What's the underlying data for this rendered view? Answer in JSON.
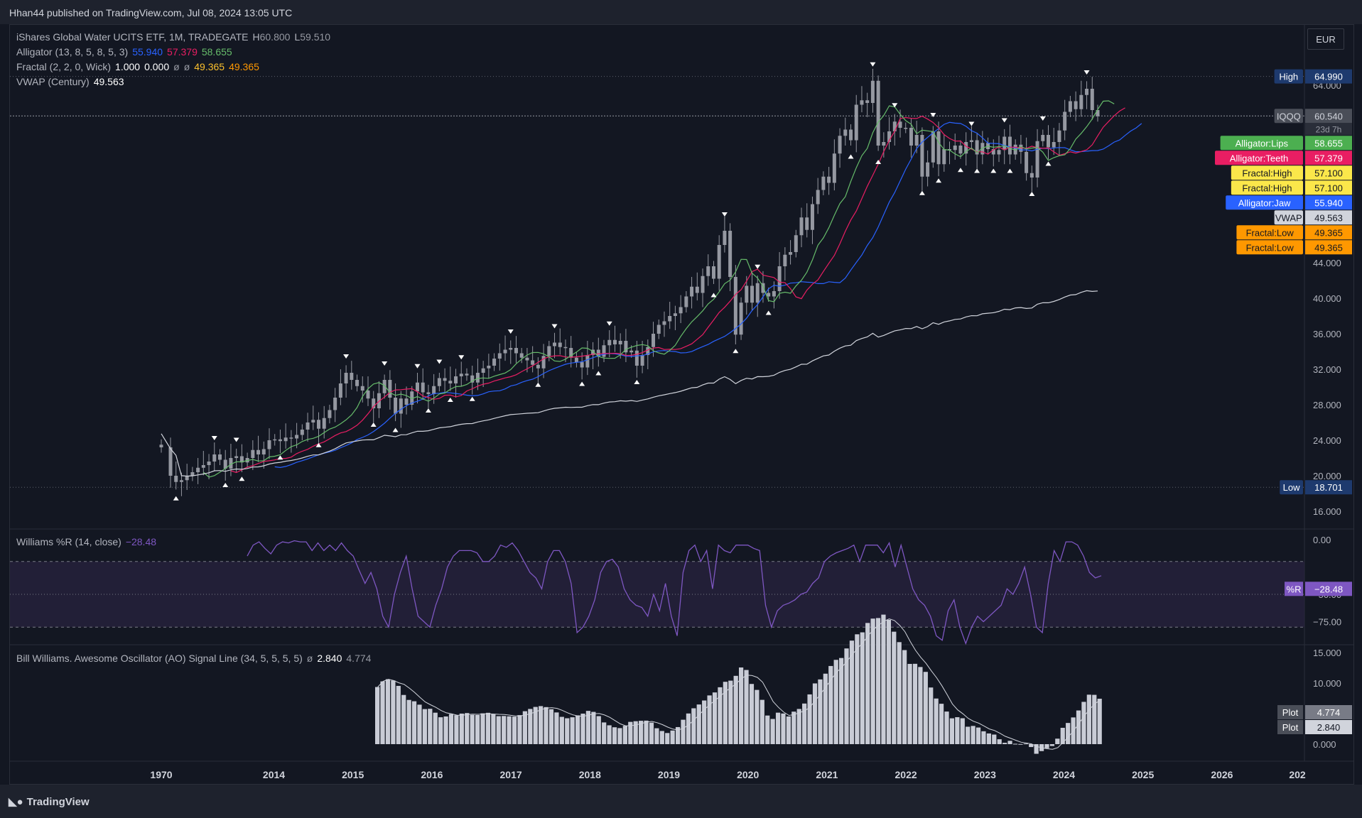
{
  "header": {
    "published": "Hhan44 published on TradingView.com, Jul 08, 2024 13:05 UTC"
  },
  "footer": {
    "brand": "TradingView"
  },
  "currency": "EUR",
  "legend": {
    "symbol": "iShares Global Water UCITS ETF, 1M, TRADEGATE",
    "h_label": "H",
    "h_value": "60.800",
    "l_label": "L",
    "l_value": "59.510",
    "alligator_label": "Alligator (13, 8, 5, 8, 5, 3)",
    "alligator_jaw": "55.940",
    "alligator_teeth": "57.379",
    "alligator_lips": "58.655",
    "fractal_label": "Fractal (2, 2, 0, Wick)",
    "fractal_v1": "1.000",
    "fractal_v2": "0.000",
    "fractal_v3": "ø",
    "fractal_v4": "ø",
    "fractal_v5": "49.365",
    "fractal_v6": "49.365",
    "vwap_label": "VWAP (Century)",
    "vwap_value": "49.563",
    "wr_label": "Williams %R (14, close)",
    "wr_value": "−28.48",
    "ao_label": "Bill Williams. Awesome Oscillator (AO) Signal Line (34, 5, 5, 5, 5)",
    "ao_v1": "ø",
    "ao_v2": "2.840",
    "ao_v3": "4.774"
  },
  "colors": {
    "background": "#131722",
    "candle": "#9598a1",
    "jaw": "#2962ff",
    "teeth": "#e91e63",
    "lips": "#66bb6a",
    "vwap": "#d1d4dc",
    "fractal_high": "#fbc02d",
    "fractal_low": "#ff9800",
    "williams": "#7e57c2",
    "ao_bar": "#c9ccd6",
    "ao_signal": "#d1d4dc"
  },
  "price_labels": [
    {
      "tag": "High",
      "value": "64.990",
      "tag_bg": "#1e3a6e",
      "val_bg": "#1e3a6e",
      "fg": "#ffffff",
      "price": 64.99
    },
    {
      "tag": "IQQQ",
      "value": "60.540",
      "extra": "23d 7h",
      "tag_bg": "#4a4e58",
      "val_bg": "#4a4e58",
      "fg": "#d1d4dc",
      "price": 60.54
    },
    {
      "tag": "Alligator:Lips",
      "value": "58.655",
      "tag_bg": "#4caf50",
      "val_bg": "#4caf50",
      "fg": "#ffffff",
      "price": 58.655
    },
    {
      "tag": "Alligator:Teeth",
      "value": "57.379",
      "tag_bg": "#e91e63",
      "val_bg": "#e91e63",
      "fg": "#ffffff",
      "price": 57.379
    },
    {
      "tag": "Fractal:High",
      "value": "57.100",
      "tag_bg": "#fbe74a",
      "val_bg": "#fbe74a",
      "fg": "#131722",
      "price": 57.1
    },
    {
      "tag": "Fractal:High",
      "value": "57.100",
      "tag_bg": "#fbe74a",
      "val_bg": "#fbe74a",
      "fg": "#131722",
      "price": 57.1
    },
    {
      "tag": "Alligator:Jaw",
      "value": "55.940",
      "tag_bg": "#2962ff",
      "val_bg": "#2962ff",
      "fg": "#ffffff",
      "price": 55.94
    },
    {
      "tag": "VWAP",
      "value": "49.563",
      "tag_bg": "#d1d4dc",
      "val_bg": "#d1d4dc",
      "fg": "#131722",
      "price": 49.563
    },
    {
      "tag": "Fractal:Low",
      "value": "49.365",
      "tag_bg": "#ff9800",
      "val_bg": "#ff9800",
      "fg": "#131722",
      "price": 49.365
    },
    {
      "tag": "Fractal:Low",
      "value": "49.365",
      "tag_bg": "#ff9800",
      "val_bg": "#ff9800",
      "fg": "#131722",
      "price": 49.365
    },
    {
      "tag": "Low",
      "value": "18.701",
      "tag_bg": "#1e3a6e",
      "val_bg": "#1e3a6e",
      "fg": "#ffffff",
      "price": 18.701
    }
  ],
  "wr_label_tag": {
    "tag": "%R",
    "value": "−28.48"
  },
  "ao_labels": [
    {
      "tag": "Plot",
      "value": "4.774"
    },
    {
      "tag": "Plot",
      "value": "2.840"
    }
  ],
  "chart_data": {
    "type": "bar",
    "title": "iShares Global Water UCITS ETF, 1M, TRADEGATE",
    "price_axis_ticks": [
      "16.000",
      "20.000",
      "24.000",
      "28.000",
      "32.000",
      "36.000",
      "40.000",
      "44.000",
      "64.000"
    ],
    "x_ticks": [
      "1970",
      "2014",
      "2015",
      "2016",
      "2017",
      "2018",
      "2019",
      "2020",
      "2021",
      "2022",
      "2023",
      "2024",
      "2025",
      "2026",
      "202"
    ],
    "wr_axis_ticks": [
      "0.00",
      "−50.00",
      "−75.00"
    ],
    "ao_axis_ticks": [
      "15.000",
      "10.000",
      "0.000"
    ],
    "price_ylim": [
      14.6,
      66.5
    ],
    "wr_ylim": [
      -100,
      0
    ],
    "ao_ylim": [
      -2.5,
      15.5
    ],
    "close": [
      23.2,
      20.0,
      19.3,
      19.5,
      20.0,
      20.4,
      20.9,
      21.2,
      21.6,
      22.4,
      21.8,
      20.8,
      22.0,
      22.2,
      21.5,
      22.0,
      22.9,
      22.4,
      23.0,
      24.0,
      24.1,
      23.9,
      24.3,
      24.2,
      24.6,
      25.2,
      26.0,
      26.3,
      25.3,
      26.5,
      27.4,
      28.8,
      30.4,
      31.6,
      30.8,
      30.1,
      29.6,
      28.7,
      27.6,
      29.3,
      30.8,
      28.8,
      27.0,
      28.7,
      28.0,
      29.5,
      30.5,
      29.4,
      29.2,
      30.1,
      31.0,
      30.7,
      30.4,
      31.2,
      31.5,
      31.3,
      30.5,
      31.6,
      32.1,
      32.4,
      33.2,
      33.8,
      34.2,
      34.4,
      33.8,
      33.3,
      33.0,
      32.5,
      32.1,
      33.5,
      34.6,
      35.0,
      34.5,
      34.4,
      33.3,
      32.8,
      32.2,
      33.6,
      34.2,
      33.4,
      34.7,
      35.3,
      34.8,
      35.2,
      33.9,
      34.1,
      32.4,
      33.6,
      34.5,
      36.0,
      37.0,
      37.4,
      38.0,
      38.3,
      39.0,
      40.2,
      41.3,
      40.6,
      42.5,
      43.6,
      42.2,
      46.0,
      47.6,
      42.4,
      35.9,
      39.5,
      41.4,
      39.5,
      41.7,
      40.6,
      40.2,
      40.8,
      43.6,
      44.9,
      45.2,
      47.1,
      49.1,
      47.7,
      50.6,
      52.2,
      53.7,
      53.0,
      56.3,
      58.3,
      59.0,
      57.8,
      61.8,
      62.3,
      62.0,
      64.5,
      57.2,
      57.6,
      58.8,
      59.9,
      59.2,
      59.2,
      57.2,
      58.4,
      53.7,
      55.3,
      58.8,
      55.1,
      56.8,
      56.7,
      57.2,
      56.3,
      57.6,
      57.8,
      56.2,
      57.5,
      56.8,
      56.2,
      56.7,
      58.2,
      56.2,
      57.3,
      56.5,
      54.1,
      53.6,
      57.7,
      58.4,
      57.0,
      57.6,
      58.9,
      61.0,
      62.2,
      61.3,
      62.9,
      63.6,
      61.2,
      60.5
    ],
    "williams_r": [
      -15,
      -5,
      -2,
      -8,
      -13,
      -5,
      -2,
      -3,
      -1,
      -2,
      -2,
      -10,
      -3,
      -10,
      -5,
      -10,
      -3,
      -10,
      -15,
      -28,
      -40,
      -30,
      -45,
      -70,
      -80,
      -50,
      -30,
      -15,
      -45,
      -70,
      -75,
      -80,
      -60,
      -45,
      -25,
      -15,
      -10,
      -10,
      -10,
      -12,
      -20,
      -20,
      -15,
      -5,
      -7,
      -3,
      -10,
      -20,
      -30,
      -35,
      -45,
      -20,
      -10,
      -10,
      -20,
      -40,
      -85,
      -80,
      -70,
      -55,
      -30,
      -20,
      -18,
      -25,
      -45,
      -55,
      -60,
      -62,
      -70,
      -50,
      -65,
      -40,
      -70,
      -88,
      -30,
      -10,
      -5,
      -20,
      -10,
      -45,
      -5,
      -10,
      -12,
      -5,
      -5,
      -5,
      -8,
      -10,
      -60,
      -80,
      -65,
      -60,
      -58,
      -55,
      -50,
      -48,
      -40,
      -35,
      -20,
      -15,
      -12,
      -10,
      -8,
      -5,
      -20,
      -5,
      -5,
      -5,
      -12,
      -3,
      -25,
      -5,
      -25,
      -45,
      -55,
      -60,
      -70,
      -88,
      -92,
      -65,
      -55,
      -80,
      -95,
      -80,
      -70,
      -75,
      -70,
      -65,
      -60,
      -45,
      -50,
      -40,
      -25,
      -50,
      -80,
      -85,
      -40,
      -10,
      -20,
      -2,
      -2,
      -5,
      -15,
      -30,
      -35,
      -33
    ]
  }
}
